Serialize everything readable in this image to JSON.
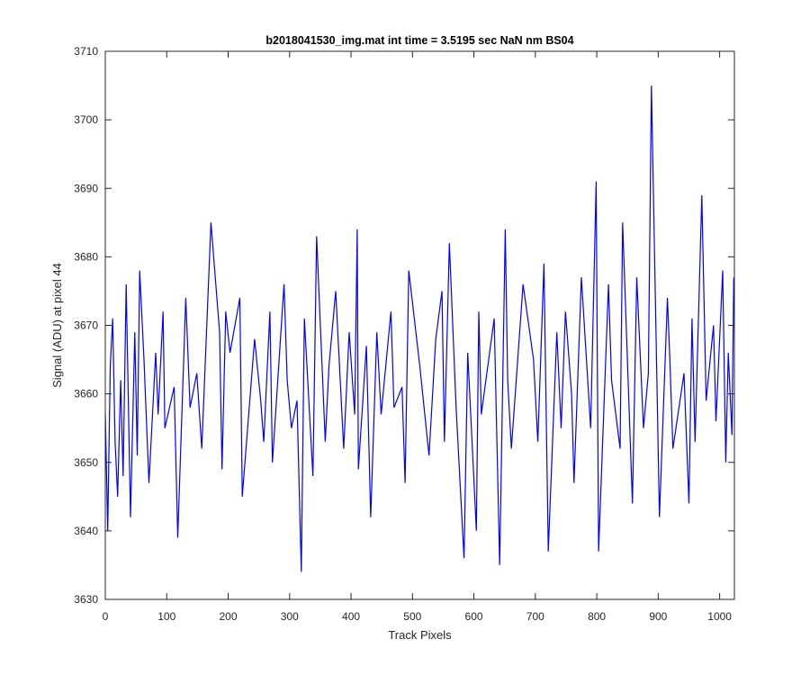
{
  "figure": {
    "background": "#ffffff"
  },
  "chart_data": {
    "type": "line",
    "title": "b2018041530_img.mat int time = 3.5195 sec  NaN nm BS04",
    "xlabel": "Track Pixels",
    "ylabel": "Signal (ADU) at pixel 44",
    "xlim": [
      0,
      1024
    ],
    "ylim": [
      3630,
      3710
    ],
    "xticks": [
      0,
      100,
      200,
      300,
      400,
      500,
      600,
      700,
      800,
      900,
      1000
    ],
    "yticks": [
      3630,
      3640,
      3650,
      3660,
      3670,
      3680,
      3690,
      3700,
      3710
    ],
    "grid": false,
    "legend": "none",
    "series": [
      {
        "color": "#0000ff",
        "x": [
          0,
          4,
          8,
          12,
          16,
          20,
          25,
          29,
          34,
          41,
          48,
          52,
          56,
          63,
          71,
          82,
          86,
          94,
          97,
          112,
          118,
          131,
          138,
          149,
          157,
          172,
          186,
          190,
          196,
          203,
          219,
          223,
          243,
          253,
          258,
          268,
          272,
          291,
          296,
          303,
          312,
          319,
          324,
          338,
          344,
          358,
          364,
          375,
          388,
          397,
          406,
          410,
          412,
          425,
          432,
          442,
          449,
          465,
          470,
          483,
          488,
          494,
          512,
          527,
          538,
          548,
          552,
          560,
          571,
          584,
          590,
          604,
          608,
          612,
          633,
          642,
          651,
          655,
          661,
          680,
          697,
          704,
          714,
          721,
          735,
          742,
          749,
          759,
          763,
          775,
          790,
          799,
          803,
          819,
          824,
          838,
          842,
          858,
          865,
          876,
          884,
          889,
          902,
          915,
          919,
          924,
          942,
          950,
          955,
          960,
          971,
          978,
          990,
          994,
          1005,
          1010,
          1014,
          1020,
          1023
        ],
        "y": [
          3657,
          3640,
          3664,
          3671,
          3653,
          3645,
          3662,
          3648,
          3676,
          3642,
          3669,
          3651,
          3678,
          3665,
          3647,
          3666,
          3657,
          3672,
          3655,
          3661,
          3639,
          3674,
          3658,
          3663,
          3652,
          3685,
          3669,
          3649,
          3672,
          3666,
          3674,
          3645,
          3668,
          3659,
          3653,
          3672,
          3650,
          3676,
          3662,
          3655,
          3659,
          3634,
          3671,
          3648,
          3683,
          3653,
          3664,
          3675,
          3652,
          3669,
          3657,
          3684,
          3649,
          3667,
          3642,
          3669,
          3657,
          3672,
          3658,
          3661,
          3647,
          3678,
          3664,
          3651,
          3668,
          3675,
          3653,
          3682,
          3658,
          3636,
          3666,
          3640,
          3672,
          3657,
          3671,
          3635,
          3684,
          3662,
          3652,
          3676,
          3665,
          3653,
          3679,
          3637,
          3669,
          3655,
          3672,
          3660,
          3647,
          3677,
          3655,
          3691,
          3637,
          3676,
          3662,
          3652,
          3685,
          3644,
          3677,
          3655,
          3663,
          3705,
          3642,
          3674,
          3665,
          3652,
          3663,
          3644,
          3671,
          3653,
          3689,
          3659,
          3670,
          3656,
          3678,
          3650,
          3666,
          3654,
          3677
        ]
      }
    ]
  }
}
